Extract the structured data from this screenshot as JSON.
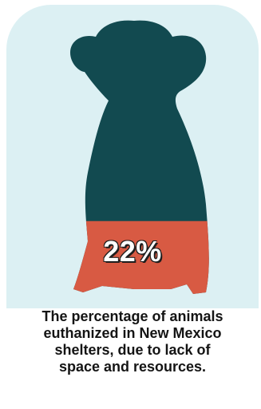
{
  "colors": {
    "background": "#dcf0f3",
    "dog_body": "#124a50",
    "highlight": "#d85a43",
    "text": "#141414"
  },
  "infographic": {
    "stat_value": "22%",
    "stat_fraction": 0.22,
    "caption": "The percentage of animals euthanized in New Mexico shelters, due to lack of space and resources."
  },
  "icons": {
    "figure": "dog-silhouette-icon"
  }
}
